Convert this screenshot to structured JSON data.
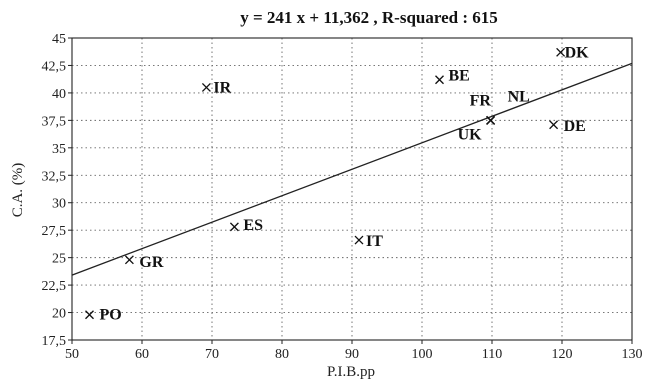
{
  "chart_data": {
    "type": "scatter",
    "title": "y = 241 x + 11,362 , R-squared : 615",
    "xlabel": "P.I.B.pp",
    "ylabel": "C.A. (%)",
    "xlim": [
      50,
      130
    ],
    "ylim": [
      17.5,
      45
    ],
    "x_ticks": [
      "50",
      "60",
      "70",
      "80",
      "90",
      "100",
      "110",
      "120",
      "130"
    ],
    "y_ticks": [
      "17,5",
      "20",
      "22,5",
      "25",
      "27,5",
      "30",
      "32,5",
      "35",
      "37,5",
      "40",
      "42,5",
      "45"
    ],
    "grid": true,
    "points": [
      {
        "label": "PO",
        "x": 52.5,
        "y": 19.8
      },
      {
        "label": "GR",
        "x": 58.2,
        "y": 24.8
      },
      {
        "label": "IR",
        "x": 69.2,
        "y": 40.5
      },
      {
        "label": "ES",
        "x": 73.2,
        "y": 27.8
      },
      {
        "label": "IT",
        "x": 91.0,
        "y": 26.6
      },
      {
        "label": "BE",
        "x": 102.5,
        "y": 41.2
      },
      {
        "label": "FR",
        "x": 109.8,
        "y": 37.5
      },
      {
        "label": "NL",
        "x": 109.8,
        "y": 37.5
      },
      {
        "label": "UK",
        "x": 109.8,
        "y": 37.5
      },
      {
        "label": "DE",
        "x": 118.8,
        "y": 37.1
      },
      {
        "label": "DK",
        "x": 119.8,
        "y": 43.7
      }
    ],
    "trendline": {
      "x": [
        50,
        130
      ],
      "y": [
        23.41,
        42.69
      ]
    }
  }
}
